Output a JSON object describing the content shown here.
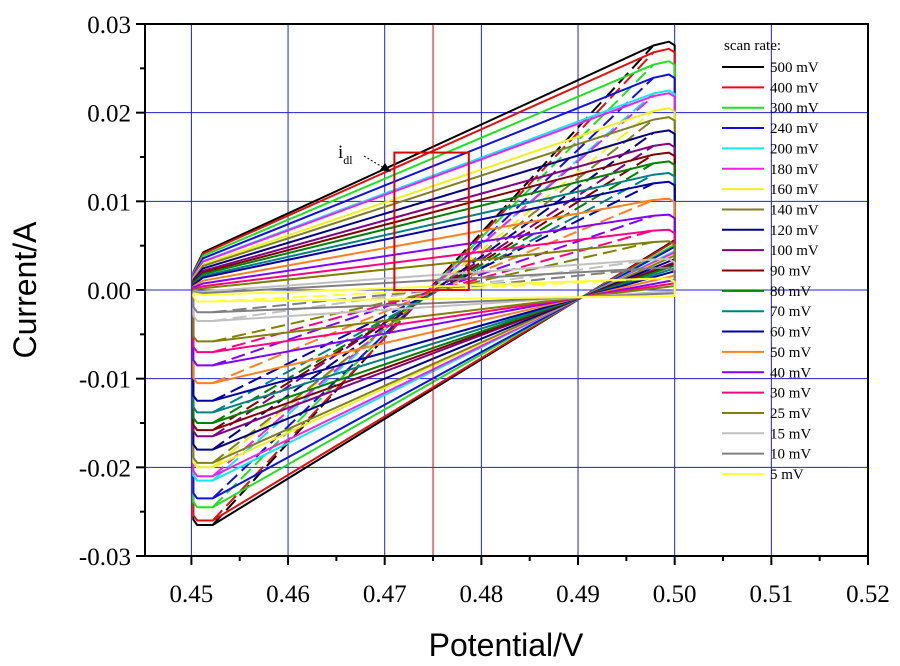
{
  "chart_data": {
    "type": "line",
    "title": "",
    "xlabel": "Potential/V",
    "ylabel": "Current/A",
    "xlim": [
      0.4452,
      0.52
    ],
    "ylim": [
      -0.03,
      0.03
    ],
    "grid": true,
    "grid_color": "#2020c8",
    "x_ticks": [
      0.45,
      0.46,
      0.47,
      0.48,
      0.49,
      0.5,
      0.51,
      0.52
    ],
    "x_tick_labels": [
      "0.45",
      "0.46",
      "0.47",
      "0.48",
      "0.49",
      "0.50",
      "0.51",
      "0.52"
    ],
    "y_ticks": [
      -0.03,
      -0.02,
      -0.01,
      0.0,
      0.01,
      0.02,
      0.03
    ],
    "y_tick_labels": [
      "-0.03",
      "-0.02",
      "-0.01",
      "0.00",
      "0.01",
      "0.02",
      "0.03"
    ],
    "reference_line": {
      "x": 0.475,
      "color": "#e00000"
    },
    "highlight_box": {
      "x": [
        0.471,
        0.4787
      ],
      "y": [
        0.0,
        0.0155
      ],
      "color": "#e00000"
    },
    "annotation": {
      "text": "i",
      "subscript": "dl"
    },
    "legend": {
      "title": "scan rate:",
      "position": "top-right"
    },
    "series": [
      {
        "name": "500 mV",
        "color": "#000000",
        "upper": [
          -0.0265,
          0.0283
        ],
        "lower_left": -0.0265,
        "upper_left": 0.004,
        "upper_at_right": 0.028
      },
      {
        "name": "400 mV",
        "color": "#e01010",
        "upper": [
          -0.026,
          0.0272
        ],
        "lower_left": -0.026,
        "upper_left": 0.0035,
        "upper_at_right": 0.0272
      },
      {
        "name": "300 mV",
        "color": "#20e020",
        "upper": [
          -0.0245,
          0.0258
        ],
        "lower_left": -0.0245,
        "upper_left": 0.003,
        "upper_at_right": 0.0258
      },
      {
        "name": "240 mV",
        "color": "#1010e0",
        "upper": [
          -0.0235,
          0.0243
        ],
        "lower_left": -0.0235,
        "upper_left": 0.0025,
        "upper_at_right": 0.0243
      },
      {
        "name": "200 mV",
        "color": "#10e8f0",
        "upper": [
          -0.0215,
          0.0225
        ],
        "lower_left": -0.0215,
        "upper_left": 0.002,
        "upper_at_right": 0.0225
      },
      {
        "name": "180 mV",
        "color": "#f020f0",
        "upper": [
          -0.021,
          0.0222
        ],
        "lower_left": -0.021,
        "upper_left": 0.002,
        "upper_at_right": 0.0222
      },
      {
        "name": "160 mV",
        "color": "#f0f020",
        "upper": [
          -0.02,
          0.0205
        ],
        "lower_left": -0.02,
        "upper_left": 0.0018,
        "upper_at_right": 0.0205
      },
      {
        "name": "140 mV",
        "color": "#808020",
        "upper": [
          -0.0195,
          0.0195
        ],
        "lower_left": -0.0195,
        "upper_left": 0.0016,
        "upper_at_right": 0.0195
      },
      {
        "name": "120 mV",
        "color": "#000080",
        "upper": [
          -0.018,
          0.018
        ],
        "lower_left": -0.018,
        "upper_left": 0.0014,
        "upper_at_right": 0.018
      },
      {
        "name": "100 mV",
        "color": "#800080",
        "upper": [
          -0.0165,
          0.0165
        ],
        "lower_left": -0.0165,
        "upper_left": 0.0012,
        "upper_at_right": 0.0165
      },
      {
        "name": "90 mV",
        "color": "#800000",
        "upper": [
          -0.0158,
          0.0155
        ],
        "lower_left": -0.0158,
        "upper_left": 0.001,
        "upper_at_right": 0.0155
      },
      {
        "name": "80 mV",
        "color": "#008000",
        "upper": [
          -0.015,
          0.0145
        ],
        "lower_left": -0.015,
        "upper_left": 0.0008,
        "upper_at_right": 0.0145
      },
      {
        "name": "70 mV",
        "color": "#008080",
        "upper": [
          -0.0138,
          0.0132
        ],
        "lower_left": -0.0138,
        "upper_left": 0.0006,
        "upper_at_right": 0.0132
      },
      {
        "name": "60 mV",
        "color": "#0000a0",
        "upper": [
          -0.0125,
          0.0122
        ],
        "lower_left": -0.0125,
        "upper_left": 0.0004,
        "upper_at_right": 0.0122
      },
      {
        "name": "50 mV",
        "color": "#ff8020",
        "upper": [
          -0.0105,
          0.0103
        ],
        "lower_left": -0.0105,
        "upper_left": 0.0002,
        "upper_at_right": 0.0103
      },
      {
        "name": "40 mV",
        "color": "#8000ff",
        "upper": [
          -0.0085,
          0.0085
        ],
        "lower_left": -0.0085,
        "upper_left": 0.0,
        "upper_at_right": 0.0085
      },
      {
        "name": "30 mV",
        "color": "#ff0080",
        "upper": [
          -0.007,
          0.0068
        ],
        "lower_left": -0.007,
        "upper_left": -0.0002,
        "upper_at_right": 0.0068
      },
      {
        "name": "25 mV",
        "color": "#808000",
        "upper": [
          -0.0058,
          0.0055
        ],
        "lower_left": -0.0058,
        "upper_left": -0.0004,
        "upper_at_right": 0.0055
      },
      {
        "name": "15 mV",
        "color": "#c0c0c0",
        "upper": [
          -0.0035,
          0.0035
        ],
        "lower_left": -0.0035,
        "upper_left": -0.0006,
        "upper_at_right": 0.0035
      },
      {
        "name": "10 mV",
        "color": "#808080",
        "upper": [
          -0.0025,
          0.0025
        ],
        "lower_left": -0.0025,
        "upper_left": -0.0008,
        "upper_at_right": 0.0025
      },
      {
        "name": "5 mV",
        "color": "#ffff40",
        "upper": [
          -0.0013,
          0.0013
        ],
        "lower_left": -0.0013,
        "upper_left": -0.001,
        "upper_at_right": 0.0013
      }
    ]
  }
}
